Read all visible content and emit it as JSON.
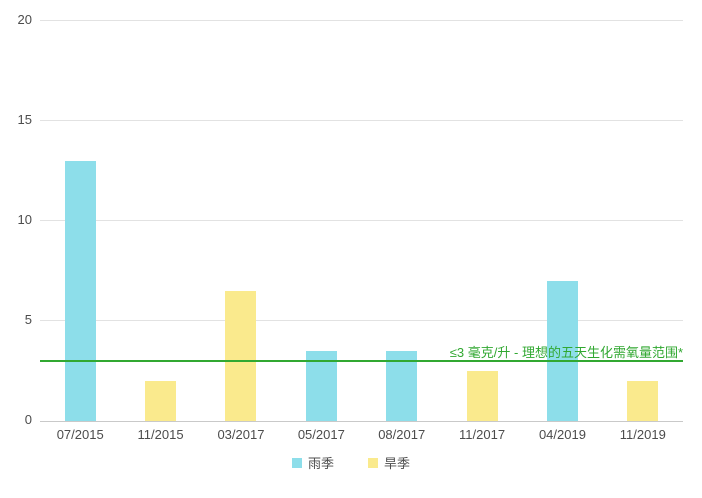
{
  "chart_data": {
    "type": "bar",
    "title": "",
    "xlabel": "",
    "ylabel": "",
    "categories": [
      "07/2015",
      "11/2015",
      "03/2017",
      "05/2017",
      "08/2017",
      "11/2017",
      "04/2019",
      "11/2019"
    ],
    "series": [
      {
        "name": "雨季",
        "color": "#8ddeea",
        "values": [
          13,
          null,
          null,
          3.5,
          3.5,
          null,
          7,
          null
        ]
      },
      {
        "name": "旱季",
        "color": "#faea8d",
        "values": [
          null,
          2,
          6.5,
          null,
          null,
          2.5,
          null,
          2
        ]
      }
    ],
    "ylim": [
      0,
      20
    ],
    "yticks": [
      0,
      5,
      10,
      15,
      20
    ],
    "grid": true,
    "legend_position": "bottom",
    "reference_line": {
      "value": 3,
      "label": "≤3 毫克/升 - 理想的五天生化需氧量范围*",
      "color": "#31a831"
    }
  },
  "colors": {
    "background": "#ffffff",
    "gridline": "#e2e2e2",
    "axis_baseline": "#c9c9c9",
    "tick_text": "#4c4c4c"
  }
}
